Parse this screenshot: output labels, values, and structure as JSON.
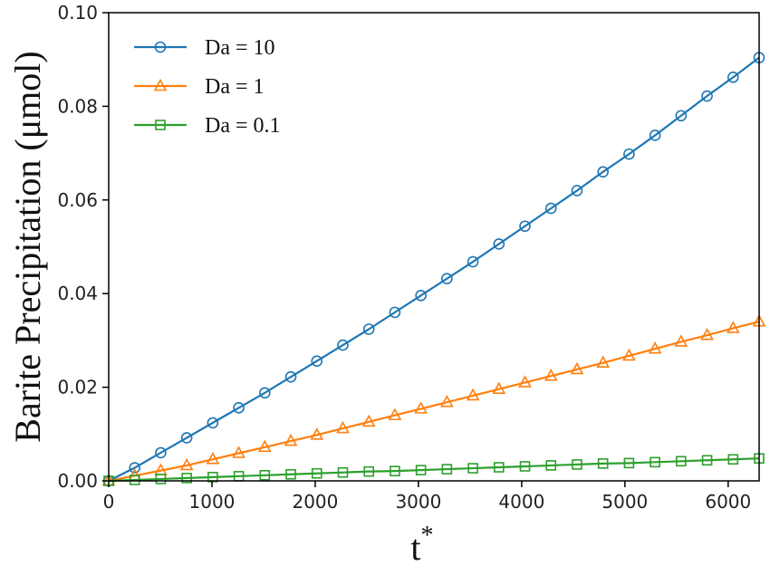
{
  "chart_data": {
    "type": "line",
    "xlabel": "t",
    "xlabel_superscript": "*",
    "ylabel": "Barite Precipitation (μmol)",
    "xlim": [
      0,
      6300
    ],
    "ylim": [
      0,
      0.1
    ],
    "xticks": [
      0,
      1000,
      2000,
      3000,
      4000,
      5000,
      6000
    ],
    "yticks": [
      0.0,
      0.02,
      0.04,
      0.06,
      0.08,
      0.1
    ],
    "xtick_labels": [
      "0",
      "1000",
      "2000",
      "3000",
      "4000",
      "5000",
      "6000"
    ],
    "ytick_labels": [
      "0.00",
      "0.02",
      "0.04",
      "0.06",
      "0.08",
      "0.10"
    ],
    "grid": false,
    "legend_position": "top-left",
    "x": [
      0,
      252,
      504,
      756,
      1008,
      1260,
      1512,
      1764,
      2016,
      2268,
      2520,
      2772,
      3024,
      3276,
      3528,
      3780,
      4032,
      4284,
      4536,
      4788,
      5040,
      5292,
      5544,
      5796,
      6048,
      6300
    ],
    "series": [
      {
        "name": "Da = 10",
        "color": "#1f77b4",
        "marker": "circle",
        "values": [
          0.0,
          0.0028,
          0.006,
          0.0092,
          0.0124,
          0.0156,
          0.0188,
          0.0222,
          0.0256,
          0.029,
          0.0324,
          0.036,
          0.0396,
          0.0432,
          0.0468,
          0.0506,
          0.0544,
          0.0582,
          0.062,
          0.066,
          0.0698,
          0.0738,
          0.078,
          0.0822,
          0.0862,
          0.0904
        ]
      },
      {
        "name": "Da = 1",
        "color": "#ff7f0e",
        "marker": "triangle",
        "values": [
          0.0,
          0.0011,
          0.0022,
          0.0033,
          0.0046,
          0.0059,
          0.0072,
          0.0085,
          0.0098,
          0.0112,
          0.0126,
          0.014,
          0.0154,
          0.0168,
          0.0182,
          0.0196,
          0.021,
          0.0224,
          0.0238,
          0.0252,
          0.0267,
          0.0282,
          0.0297,
          0.0311,
          0.0326,
          0.034
        ]
      },
      {
        "name": "Da = 0.1",
        "color": "#2ca02c",
        "marker": "square",
        "values": [
          0.0,
          0.0002,
          0.0004,
          0.0006,
          0.0008,
          0.001,
          0.0012,
          0.0014,
          0.0016,
          0.0018,
          0.002,
          0.0021,
          0.0023,
          0.0025,
          0.0027,
          0.0029,
          0.0031,
          0.0033,
          0.0035,
          0.0037,
          0.0038,
          0.004,
          0.0042,
          0.0044,
          0.0046,
          0.0048
        ]
      }
    ]
  }
}
